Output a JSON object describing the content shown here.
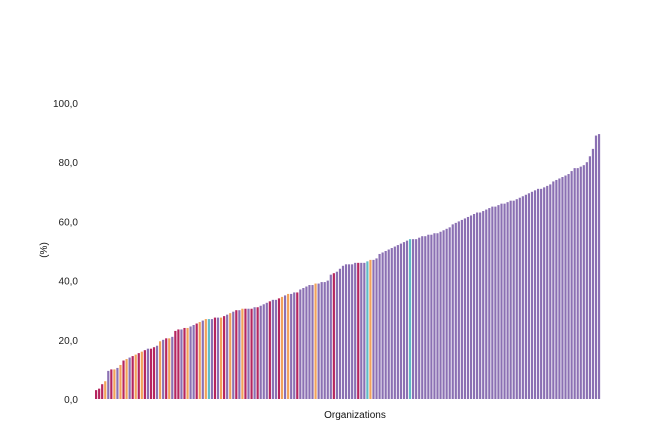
{
  "chart_data": {
    "type": "bar",
    "xlabel": "Organizations",
    "ylabel": "(%)",
    "ylim": [
      0,
      100
    ],
    "y_ticks": [
      "0,0",
      "20,0",
      "40,0",
      "60,0",
      "80,0",
      "100,0"
    ],
    "grid": false,
    "legend": "none",
    "palette": {
      "magenta": "#b5255f",
      "orange": "#f2a25a",
      "purple": "#8b70b3",
      "teal": "#5fbcc6"
    },
    "category_labels_shown": false,
    "values": [
      3,
      3.5,
      5,
      6,
      9.5,
      10,
      10,
      10.5,
      11.5,
      13,
      13.5,
      14,
      14.5,
      15,
      15.5,
      16,
      16.5,
      17,
      17,
      17.5,
      18,
      19.5,
      20,
      20.5,
      20.5,
      21,
      23,
      23.5,
      23.5,
      24,
      24,
      24.5,
      25,
      25.5,
      26,
      26.5,
      27,
      27,
      27,
      27.5,
      27.5,
      27.5,
      28,
      28.5,
      29,
      29.5,
      30,
      30,
      30.5,
      30.5,
      30.5,
      30.5,
      31,
      31,
      31.5,
      32,
      32.5,
      33,
      33.5,
      33.5,
      34,
      34.5,
      35,
      35.5,
      35.5,
      36,
      36,
      37,
      37.5,
      38,
      38.5,
      38.5,
      39,
      39,
      39.5,
      39.5,
      40,
      42,
      42.5,
      43,
      44,
      45,
      45.5,
      45.5,
      45.5,
      46,
      46,
      46,
      46,
      46.5,
      47,
      47,
      47.5,
      49,
      49.5,
      50,
      50.5,
      51,
      51.5,
      52,
      52.5,
      53,
      53.5,
      54,
      54,
      54,
      54.5,
      55,
      55,
      55.5,
      55.5,
      56,
      56,
      56.5,
      57,
      57.5,
      58,
      59,
      59.5,
      60,
      60.5,
      61,
      61.5,
      62,
      62.5,
      63,
      63,
      63.5,
      64,
      64.5,
      65,
      65,
      65.5,
      66,
      66,
      66.5,
      67,
      67,
      67.5,
      68,
      68.5,
      69,
      69.5,
      70,
      70.5,
      71,
      71,
      71.5,
      72,
      72.5,
      73.5,
      74,
      74.5,
      75,
      75.5,
      76,
      77,
      78,
      78,
      78.5,
      79,
      80,
      82,
      84.5,
      89,
      89.5
    ],
    "colors": [
      "magenta",
      "magenta",
      "magenta",
      "orange",
      "purple",
      "magenta",
      "orange",
      "purple",
      "orange",
      "magenta",
      "orange",
      "purple",
      "magenta",
      "orange",
      "magenta",
      "orange",
      "magenta",
      "purple",
      "magenta",
      "magenta",
      "purple",
      "orange",
      "purple",
      "magenta",
      "orange",
      "purple",
      "magenta",
      "magenta",
      "purple",
      "magenta",
      "orange",
      "purple",
      "purple",
      "magenta",
      "orange",
      "purple",
      "orange",
      "teal",
      "purple",
      "magenta",
      "purple",
      "orange",
      "magenta",
      "purple",
      "orange",
      "purple",
      "magenta",
      "purple",
      "orange",
      "magenta",
      "purple",
      "magenta",
      "purple",
      "magenta",
      "purple",
      "purple",
      "purple",
      "magenta",
      "purple",
      "purple",
      "magenta",
      "orange",
      "purple",
      "orange",
      "purple",
      "purple",
      "magenta",
      "purple",
      "purple",
      "purple",
      "purple",
      "purple",
      "orange",
      "purple",
      "purple",
      "purple",
      "purple",
      "purple",
      "magenta",
      "purple",
      "purple",
      "purple",
      "purple",
      "purple",
      "purple",
      "purple",
      "magenta",
      "purple",
      "purple",
      "teal",
      "orange",
      "purple",
      "purple",
      "purple",
      "purple",
      "purple",
      "purple",
      "purple",
      "purple",
      "purple",
      "purple",
      "purple",
      "purple",
      "teal",
      "purple",
      "purple",
      "purple",
      "purple",
      "purple",
      "purple",
      "purple",
      "purple",
      "purple",
      "purple",
      "purple",
      "purple",
      "purple",
      "purple",
      "purple",
      "purple",
      "purple",
      "purple",
      "purple",
      "purple",
      "purple",
      "purple",
      "purple",
      "purple",
      "purple",
      "purple",
      "purple",
      "purple",
      "purple",
      "purple",
      "purple",
      "purple",
      "purple",
      "purple",
      "purple",
      "purple",
      "purple",
      "purple",
      "purple",
      "purple",
      "purple",
      "purple",
      "purple",
      "purple",
      "purple",
      "purple",
      "purple",
      "purple",
      "purple",
      "purple",
      "purple",
      "purple",
      "purple",
      "purple",
      "purple",
      "purple",
      "purple",
      "purple",
      "purple",
      "purple",
      "purple",
      "purple"
    ]
  }
}
